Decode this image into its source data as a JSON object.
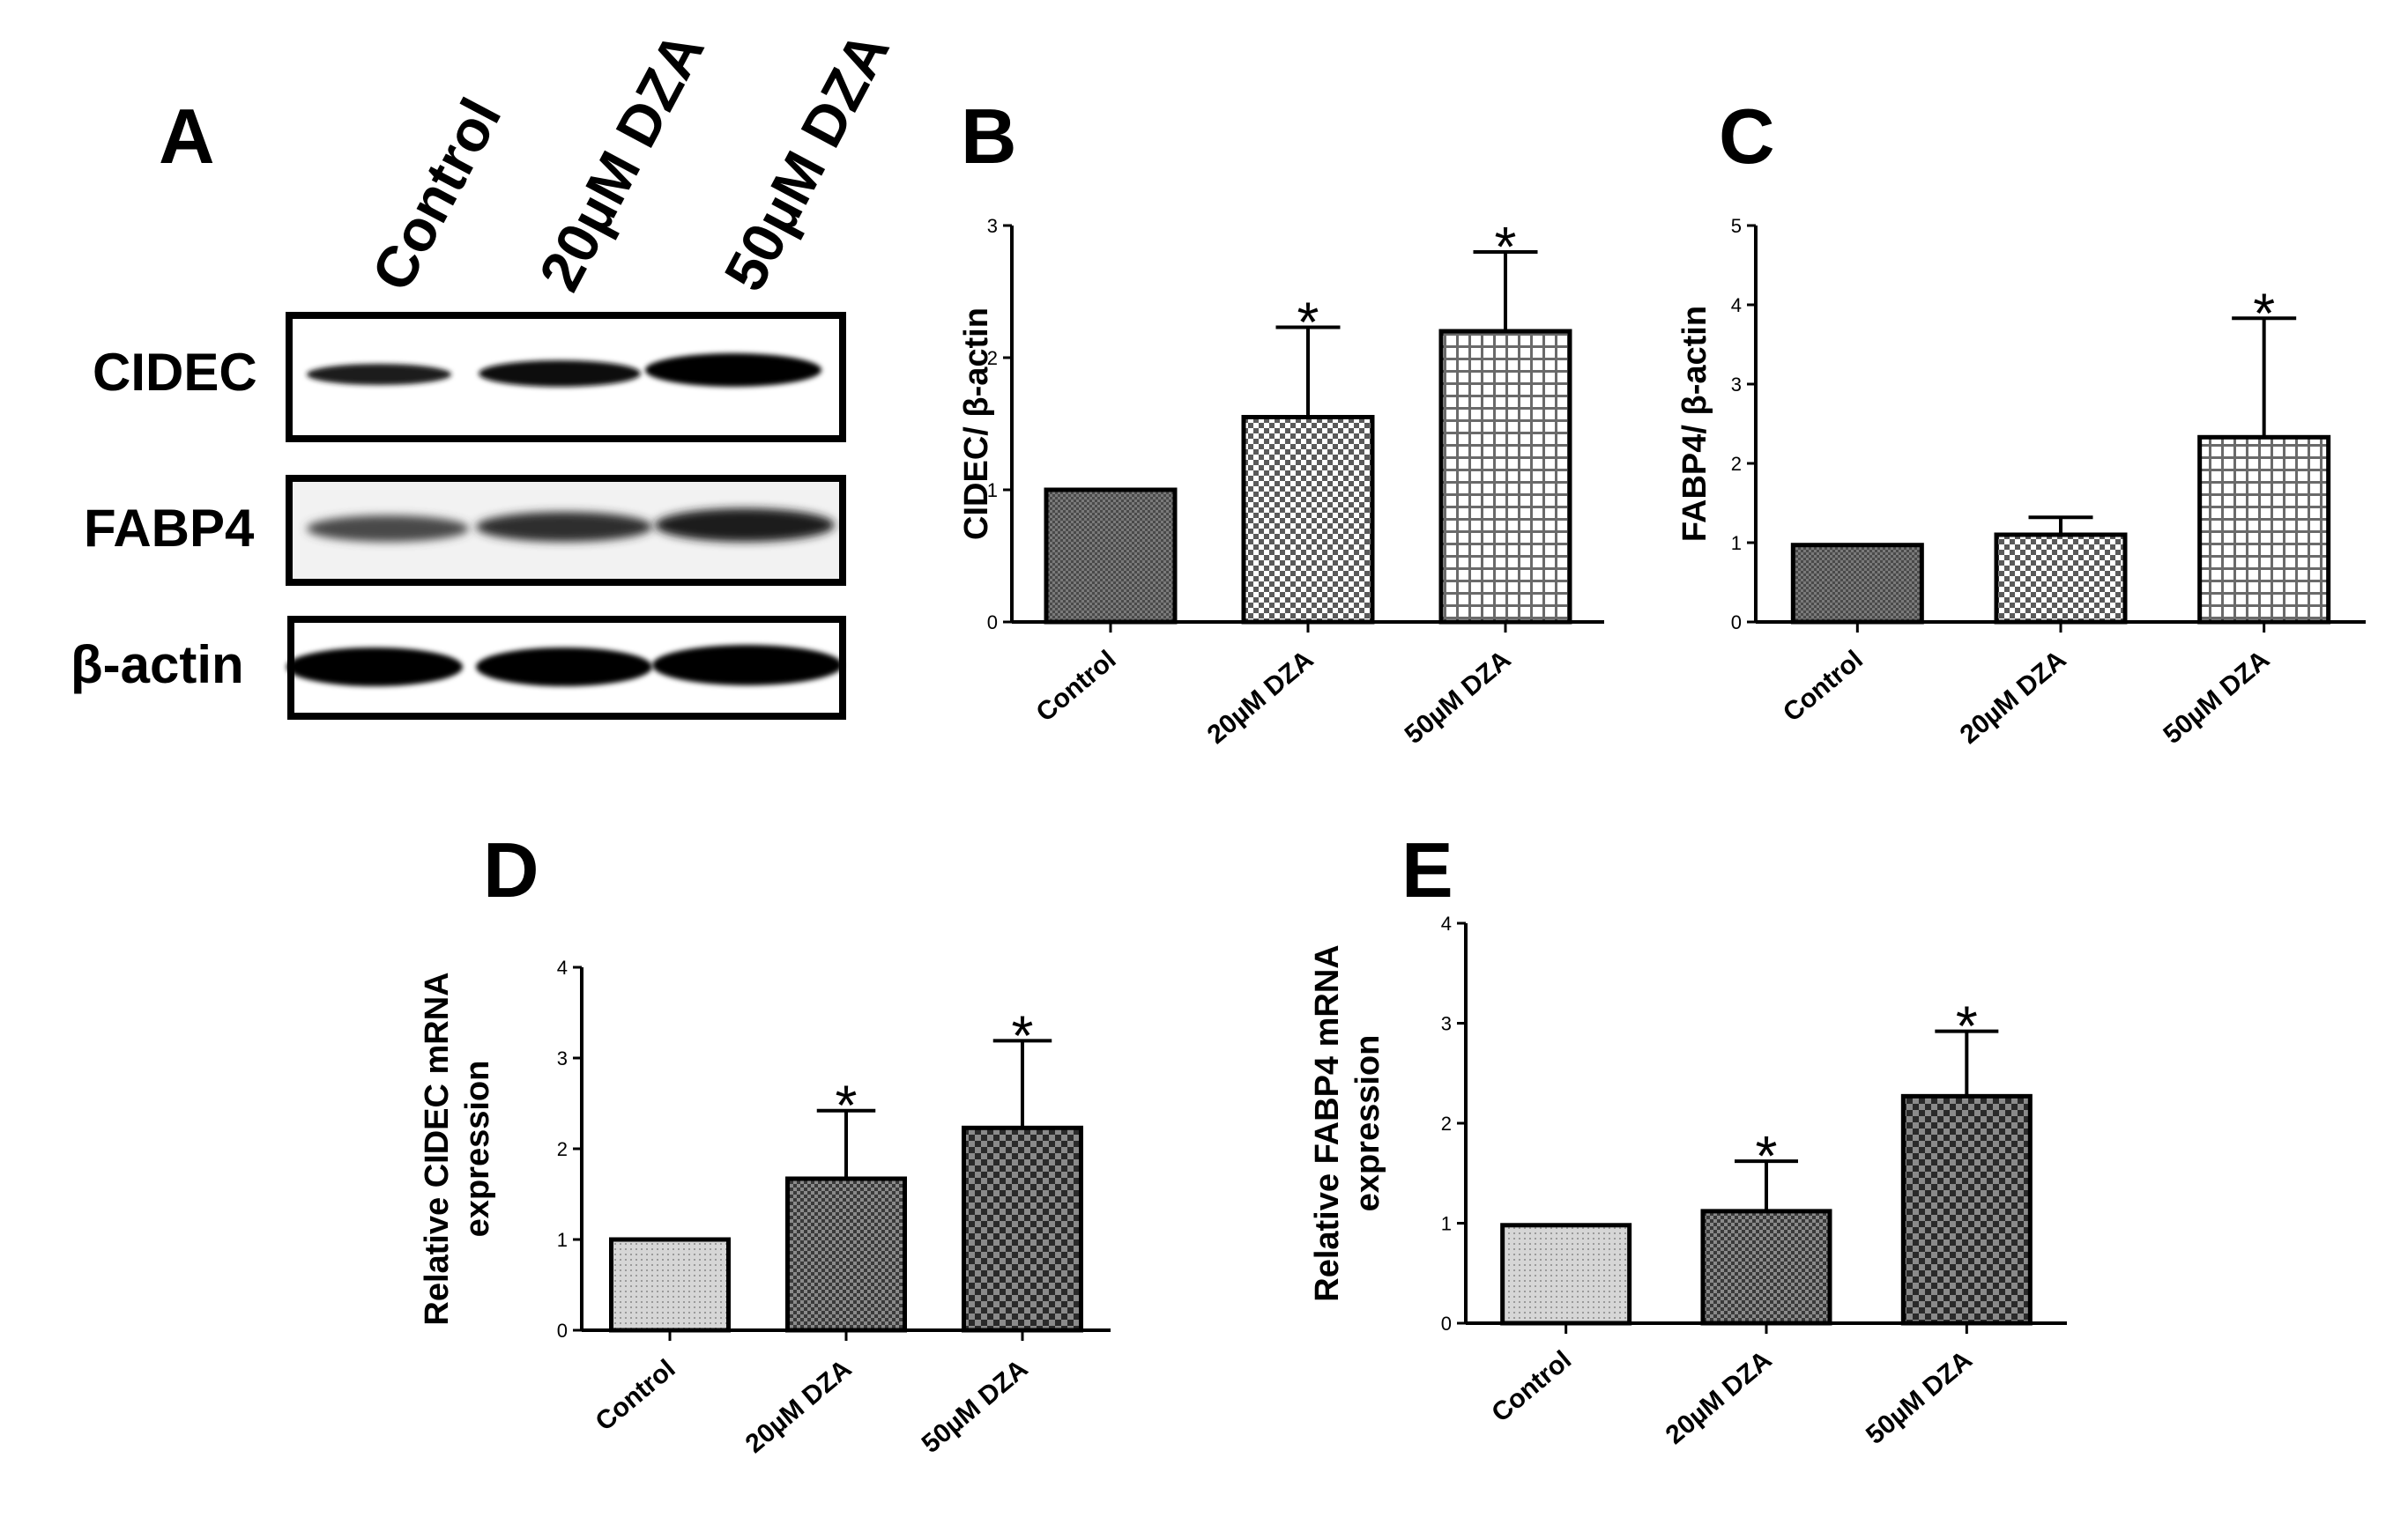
{
  "panelA": {
    "letter": "A",
    "lanes": [
      "Control",
      "20µM DZA",
      "50µM DZA"
    ],
    "rows": [
      "CIDEC",
      "FABP4",
      "β-actin"
    ]
  },
  "chart_data": [
    {
      "id": "B",
      "type": "bar",
      "letter": "B",
      "categories": [
        "Control",
        "20µM DZA",
        "50µM DZA"
      ],
      "values": [
        1.0,
        1.55,
        2.2
      ],
      "errors": [
        0,
        0.68,
        0.6
      ],
      "significance": [
        "",
        "*",
        "*"
      ],
      "yticks": [
        "0",
        "1",
        "2",
        "3"
      ],
      "ylim": [
        0,
        3
      ],
      "ylabel": "CIDEC/ β-actin",
      "xlabel": "",
      "patterns": [
        "dense",
        "check",
        "grid"
      ]
    },
    {
      "id": "C",
      "type": "bar",
      "letter": "C",
      "categories": [
        "Control",
        "20µM DZA",
        "50µM DZA"
      ],
      "values": [
        0.97,
        1.1,
        2.33
      ],
      "errors": [
        0,
        0.22,
        1.5
      ],
      "significance": [
        "",
        "",
        "*"
      ],
      "yticks": [
        "0",
        "1",
        "2",
        "3",
        "4",
        "5"
      ],
      "ylim": [
        0,
        5
      ],
      "ylabel": "FABP4/ β-actin",
      "xlabel": "",
      "patterns": [
        "dense",
        "check",
        "grid"
      ]
    },
    {
      "id": "D",
      "type": "bar",
      "letter": "D",
      "categories": [
        "Control",
        "20µM DZA",
        "50µM DZA"
      ],
      "values": [
        1.0,
        1.67,
        2.23
      ],
      "errors": [
        0,
        0.75,
        0.96
      ],
      "significance": [
        "",
        "*",
        "*"
      ],
      "yticks": [
        "0",
        "1",
        "2",
        "3",
        "4"
      ],
      "ylim": [
        0,
        4
      ],
      "ylabel": [
        "Relative CIDEC mRNA",
        "expression"
      ],
      "xlabel": "",
      "patterns": [
        "dots",
        "mesh",
        "bigcheck"
      ]
    },
    {
      "id": "E",
      "type": "bar",
      "letter": "E",
      "categories": [
        "Control",
        "20µM DZA",
        "50µM DZA"
      ],
      "values": [
        0.98,
        1.12,
        2.27
      ],
      "errors": [
        0,
        0.5,
        0.65
      ],
      "significance": [
        "",
        "*",
        "*"
      ],
      "yticks": [
        "0",
        "1",
        "2",
        "3",
        "4"
      ],
      "ylim": [
        0,
        4
      ],
      "ylabel": [
        "Relative FABP4 mRNA",
        "expression"
      ],
      "xlabel": "",
      "patterns": [
        "dots",
        "mesh",
        "bigcheck"
      ]
    }
  ]
}
